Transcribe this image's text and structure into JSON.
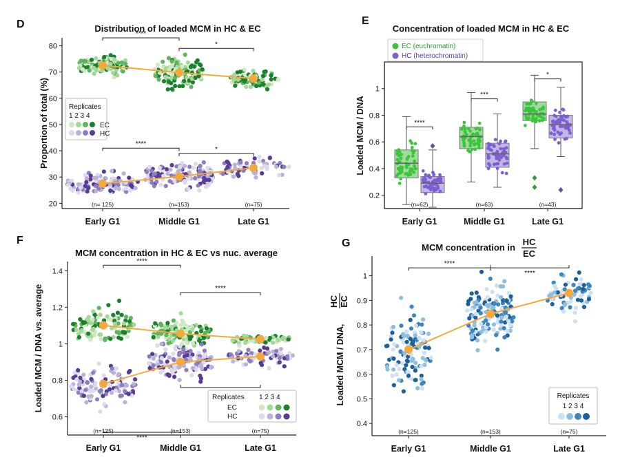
{
  "colors": {
    "ec_reps": [
      "#cfe9c4",
      "#a4d897",
      "#5fb55b",
      "#1b7f2f"
    ],
    "hc_reps": [
      "#dcdaeb",
      "#b8b3d7",
      "#8e7ec0",
      "#5a3a97"
    ],
    "g_reps": [
      "#cfe1f0",
      "#8fbedf",
      "#3f85bd",
      "#1f5f99"
    ],
    "mean": "#f4a93d",
    "ec_box": "#3cc43c",
    "hc_box": "#7d5fd1"
  },
  "panels": {
    "D": {
      "label": "D",
      "title": "Distribution of  loaded MCM in HC & EC",
      "ylabel": "Proportion of total (%)",
      "legend_title": "Replicates",
      "legend_nums": "1 2 3 4",
      "legend_ec": "EC",
      "legend_hc": "HC"
    },
    "E": {
      "label": "E",
      "title": "Concentration of  loaded MCM in HC & EC",
      "ylabel": "Loaded MCM / DNA",
      "legend_ec": "EC (euchromatin)",
      "legend_hc": "HC (heterochromatin)"
    },
    "F": {
      "label": "F",
      "title": "MCM concentration in HC & EC vs nuc. average",
      "ylabel": "Loaded MCM / DNA vs. average",
      "legend_title": "Replicates",
      "legend_nums": "1 2 3 4",
      "legend_ec": "EC",
      "legend_hc": "HC"
    },
    "G": {
      "label": "G",
      "title": "MCM concentration in",
      "title_num": "HC",
      "title_den": "EC",
      "ylabel": "Loaded MCM / DNA,",
      "ylabel_num": "HC",
      "ylabel_den": "EC",
      "legend_title": "Replicates",
      "legend_nums": "1 2 3 4"
    }
  },
  "chart_data": [
    {
      "panel": "D",
      "type": "scatter",
      "title": "Distribution of  loaded MCM in HC & EC",
      "ylabel": "Proportion of total (%)",
      "categories": [
        "Early G1",
        "Middle G1",
        "Late G1"
      ],
      "n_labels": [
        "(n= 125)",
        "(n=153)",
        "(n=75)"
      ],
      "ylim": [
        18,
        83
      ],
      "yticks": [
        20,
        30,
        40,
        50,
        60,
        70,
        80
      ],
      "series": [
        {
          "name": "EC",
          "means": [
            72.5,
            69.8,
            67.5
          ],
          "spread": [
            [
              62,
              78
            ],
            [
              59,
              80
            ],
            [
              61,
              76
            ]
          ]
        },
        {
          "name": "HC",
          "means": [
            27.5,
            30.2,
            33.5
          ],
          "spread": [
            [
              22,
              38
            ],
            [
              20,
              41
            ],
            [
              24,
              39
            ]
          ]
        }
      ],
      "significance": [
        {
          "from": 0,
          "to": 1,
          "y": 83,
          "label": "****"
        },
        {
          "from": 1,
          "to": 2,
          "y": 79,
          "label": "*"
        },
        {
          "from": 0,
          "to": 1,
          "y": 41,
          "label": "****"
        },
        {
          "from": 1,
          "to": 2,
          "y": 39,
          "label": "*"
        }
      ]
    },
    {
      "panel": "E",
      "type": "box",
      "title": "Concentration of  loaded MCM in HC & EC",
      "ylabel": "Loaded MCM / DNA",
      "categories": [
        "Early G1",
        "Middle G1",
        "Late G1"
      ],
      "n_labels": [
        "(n=62)",
        "(n=63)",
        "(n=43)"
      ],
      "ylim": [
        0.1,
        1.2
      ],
      "yticks": [
        0.2,
        0.4,
        0.6,
        0.8,
        1.0
      ],
      "series": [
        {
          "name": "EC (euchromatin)",
          "boxes": [
            {
              "q1": 0.33,
              "median": 0.44,
              "q3": 0.54,
              "wl": 0.13,
              "wh": 0.79,
              "outliers": []
            },
            {
              "q1": 0.55,
              "median": 0.64,
              "q3": 0.71,
              "wl": 0.3,
              "wh": 0.97,
              "outliers": []
            },
            {
              "q1": 0.76,
              "median": 0.81,
              "q3": 0.9,
              "wl": 0.55,
              "wh": 1.1,
              "outliers": [
                0.33,
                0.26
              ]
            }
          ]
        },
        {
          "name": "HC (heterochromatin)",
          "boxes": [
            {
              "q1": 0.22,
              "median": 0.29,
              "q3": 0.34,
              "wl": 0.11,
              "wh": 0.54,
              "outliers": [
                0.57
              ]
            },
            {
              "q1": 0.41,
              "median": 0.51,
              "q3": 0.59,
              "wl": 0.26,
              "wh": 0.81,
              "outliers": []
            },
            {
              "q1": 0.63,
              "median": 0.73,
              "q3": 0.8,
              "wl": 0.49,
              "wh": 1.01,
              "outliers": [
                0.24
              ]
            }
          ]
        }
      ],
      "significance": [
        {
          "group": 0,
          "y": 0.62,
          "label": "****"
        },
        {
          "group": 1,
          "y": 0.83,
          "label": "***"
        },
        {
          "group": 2,
          "y": 0.98,
          "label": "*"
        }
      ]
    },
    {
      "panel": "F",
      "type": "scatter",
      "title": "MCM concentration in HC & EC vs nuc. average",
      "ylabel": "Loaded MCM / DNA vs. average",
      "categories": [
        "Early G1",
        "Middle G1",
        "Late G1"
      ],
      "n_labels": [
        "(n=125)",
        "(n=153)",
        "(n=75)"
      ],
      "ylim": [
        0.5,
        1.45
      ],
      "yticks": [
        0.6,
        0.8,
        1.0,
        1.2,
        1.4
      ],
      "series": [
        {
          "name": "EC",
          "means": [
            1.1,
            1.055,
            1.025
          ],
          "spread": [
            [
              1.02,
              1.4
            ],
            [
              0.98,
              1.28
            ],
            [
              0.99,
              1.08
            ]
          ]
        },
        {
          "name": "HC",
          "means": [
            0.78,
            0.9,
            0.93
          ],
          "spread": [
            [
              0.52,
              0.93
            ],
            [
              0.66,
              1.0
            ],
            [
              0.76,
              0.99
            ]
          ]
        }
      ],
      "significance": [
        {
          "from": 0,
          "to": 1,
          "y": 1.43,
          "label": "****"
        },
        {
          "from": 1,
          "to": 2,
          "y": 1.28,
          "label": "****"
        },
        {
          "from": 1,
          "to": 2,
          "y": 0.76,
          "label": "****"
        },
        {
          "from": 0,
          "to": 1,
          "y": 0.515,
          "label": "****"
        }
      ]
    },
    {
      "panel": "G",
      "type": "scatter",
      "title": "MCM concentration in HC/EC",
      "ylabel": "Loaded MCM / DNA, HC/EC",
      "categories": [
        "Early G1",
        "Middle G1",
        "Late G1"
      ],
      "n_labels": [
        "(n=125)",
        "(n=153)",
        "(n=75)"
      ],
      "ylim": [
        0.35,
        1.08
      ],
      "yticks": [
        0.4,
        0.5,
        0.6,
        0.7,
        0.8,
        0.9,
        1.0
      ],
      "series": [
        {
          "name": "HC/EC",
          "means": [
            0.7,
            0.845,
            0.93
          ],
          "spread": [
            [
              0.37,
              1.0
            ],
            [
              0.54,
              1.03
            ],
            [
              0.71,
              1.05
            ]
          ]
        }
      ],
      "significance": [
        {
          "from": 0,
          "to": 1,
          "y": 1.06,
          "label": "****"
        },
        {
          "from": 1,
          "to": 2,
          "y": 1.06,
          "label": "****"
        }
      ]
    }
  ]
}
